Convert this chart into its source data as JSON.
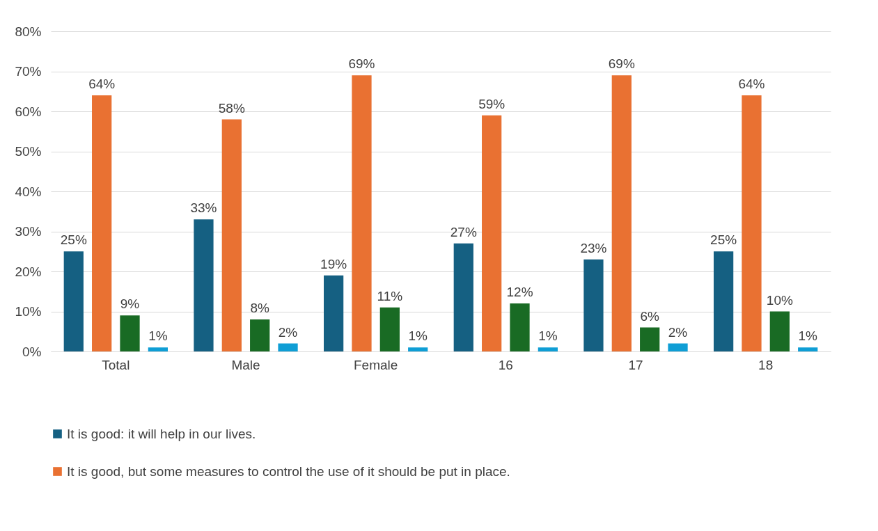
{
  "chart_data": {
    "type": "bar",
    "categories": [
      "Total",
      "Male",
      "Female",
      "16",
      "17",
      "18"
    ],
    "series": [
      {
        "name": "It is good: it will help in our lives.",
        "color": "#156082",
        "values": [
          25,
          33,
          19,
          27,
          23,
          25
        ],
        "value_labels": [
          "25%",
          "33%",
          "19%",
          "27%",
          "23%",
          "25%"
        ]
      },
      {
        "name": "It is good, but some measures to control the use of it should be put in place.",
        "color": "#e97132",
        "values": [
          64,
          58,
          69,
          59,
          69,
          64
        ],
        "value_labels": [
          "64%",
          "58%",
          "69%",
          "59%",
          "69%",
          "64%"
        ]
      },
      {
        "color": "#196b24",
        "values": [
          9,
          8,
          11,
          12,
          6,
          10
        ],
        "value_labels": [
          "9%",
          "8%",
          "11%",
          "12%",
          "6%",
          "10%"
        ]
      },
      {
        "color": "#0f9ed5",
        "values": [
          1,
          2,
          1,
          1,
          2,
          1
        ],
        "value_labels": [
          "1%",
          "2%",
          "1%",
          "1%",
          "2%",
          "1%"
        ]
      }
    ],
    "ylim": [
      0,
      80
    ],
    "yticks": [
      {
        "value": 0,
        "label": "0%"
      },
      {
        "value": 10,
        "label": "10%"
      },
      {
        "value": 20,
        "label": "20%"
      },
      {
        "value": 30,
        "label": "30%"
      },
      {
        "value": 40,
        "label": "40%"
      },
      {
        "value": 50,
        "label": "50%"
      },
      {
        "value": 60,
        "label": "60%"
      },
      {
        "value": 70,
        "label": "70%"
      },
      {
        "value": 80,
        "label": "80%"
      }
    ],
    "grid": "y",
    "legend": "bottom"
  }
}
